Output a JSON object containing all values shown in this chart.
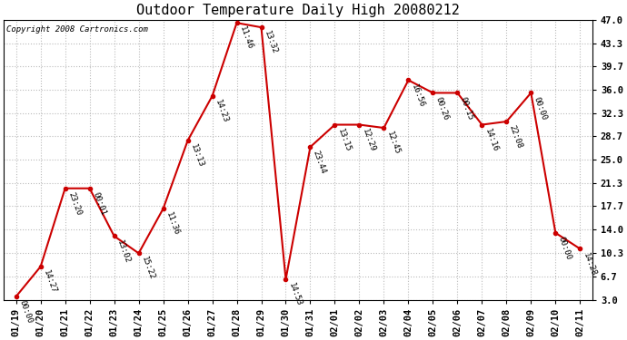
{
  "title": "Outdoor Temperature Daily High 20080212",
  "copyright": "Copyright 2008 Cartronics.com",
  "x_labels": [
    "01/19",
    "01/20",
    "01/21",
    "01/22",
    "01/23",
    "01/24",
    "01/25",
    "01/26",
    "01/27",
    "01/28",
    "01/29",
    "01/30",
    "01/31",
    "02/01",
    "02/02",
    "02/03",
    "02/04",
    "02/05",
    "02/06",
    "02/07",
    "02/08",
    "02/09",
    "02/10",
    "02/11"
  ],
  "y_values": [
    3.5,
    8.2,
    20.5,
    20.5,
    13.0,
    10.3,
    17.3,
    28.0,
    35.0,
    46.5,
    45.8,
    6.2,
    27.0,
    30.5,
    30.5,
    30.0,
    37.5,
    35.5,
    35.5,
    30.5,
    31.0,
    35.5,
    13.5,
    11.0
  ],
  "time_labels": [
    "00:00",
    "14:27",
    "23:20",
    "00:01",
    "13:02",
    "15:22",
    "11:36",
    "13:13",
    "14:23",
    "11:46",
    "13:32",
    "14:53",
    "23:44",
    "13:15",
    "12:29",
    "12:45",
    "16:56",
    "00:26",
    "00:15",
    "14:16",
    "22:08",
    "00:00",
    "00:00",
    "14:28"
  ],
  "line_color": "#cc0000",
  "marker_color": "#cc0000",
  "background_color": "#ffffff",
  "grid_color": "#bbbbbb",
  "ylim": [
    3.0,
    47.0
  ],
  "yticks": [
    3.0,
    6.7,
    10.3,
    14.0,
    17.7,
    21.3,
    25.0,
    28.7,
    32.3,
    36.0,
    39.7,
    43.3,
    47.0
  ],
  "title_fontsize": 11,
  "copyright_fontsize": 6.5,
  "label_fontsize": 6.5,
  "tick_fontsize": 7.5
}
